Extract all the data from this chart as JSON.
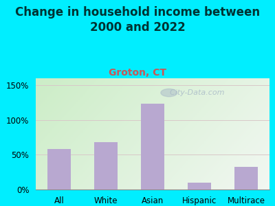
{
  "title": "Change in household income between\n2000 and 2022",
  "subtitle": "Groton, CT",
  "categories": [
    "All",
    "White",
    "Asian",
    "Hispanic",
    "Multirace"
  ],
  "values": [
    58,
    68,
    123,
    10,
    33
  ],
  "bar_color": "#b8a8d0",
  "title_fontsize": 12,
  "subtitle_fontsize": 10,
  "subtitle_color": "#cc5555",
  "title_color": "#003333",
  "background_outer": "#00eeff",
  "background_inner_topleft": "#c8e8c0",
  "background_inner_right": "#e8f4f0",
  "yticks": [
    0,
    50,
    100,
    150
  ],
  "ytick_labels": [
    "0%",
    "50%",
    "100%",
    "150%"
  ],
  "ylim": [
    0,
    160
  ],
  "grid_color": "#d8c8c8",
  "watermark": "City-Data.com",
  "watermark_color": "#aabbc8"
}
